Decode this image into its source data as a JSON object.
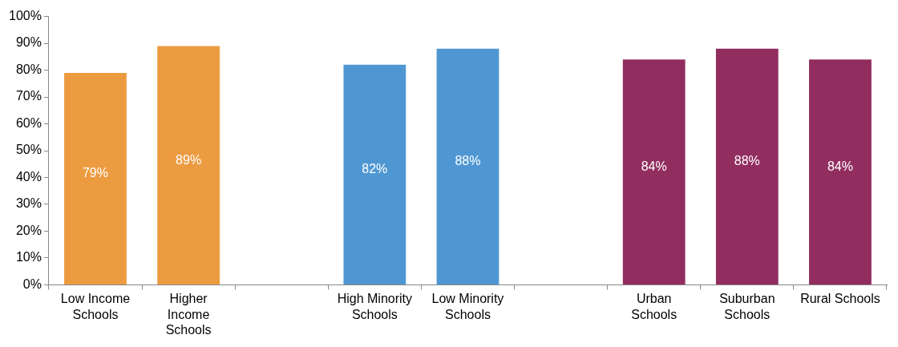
{
  "chart_data": {
    "type": "bar",
    "categories": [
      "Low Income Schools",
      "Higher Income Schools",
      null,
      "High Minority Schools",
      "Low Minority Schools",
      null,
      "Urban Schools",
      "Suburban Schools",
      "Rural Schools"
    ],
    "values": [
      79,
      89,
      null,
      82,
      88,
      null,
      84,
      88,
      84
    ],
    "colors": [
      "#ed9b40",
      "#ed9b40",
      null,
      "#4f97d2",
      "#4f97d2",
      null,
      "#922d60",
      "#922d60",
      "#922d60"
    ],
    "value_labels": [
      "79%",
      "89%",
      null,
      "82%",
      "88%",
      null,
      "84%",
      "88%",
      "84%"
    ],
    "ylim": [
      0,
      100
    ],
    "yticks": [
      {
        "value": 0,
        "label": "0%"
      },
      {
        "value": 10,
        "label": "10%"
      },
      {
        "value": 20,
        "label": "20%"
      },
      {
        "value": 30,
        "label": "30%"
      },
      {
        "value": 40,
        "label": "40%"
      },
      {
        "value": 50,
        "label": "50%"
      },
      {
        "value": 60,
        "label": "60%"
      },
      {
        "value": 70,
        "label": "70%"
      },
      {
        "value": 80,
        "label": "80%"
      },
      {
        "value": 90,
        "label": "90%"
      },
      {
        "value": 100,
        "label": "100%"
      }
    ],
    "legend": false
  }
}
